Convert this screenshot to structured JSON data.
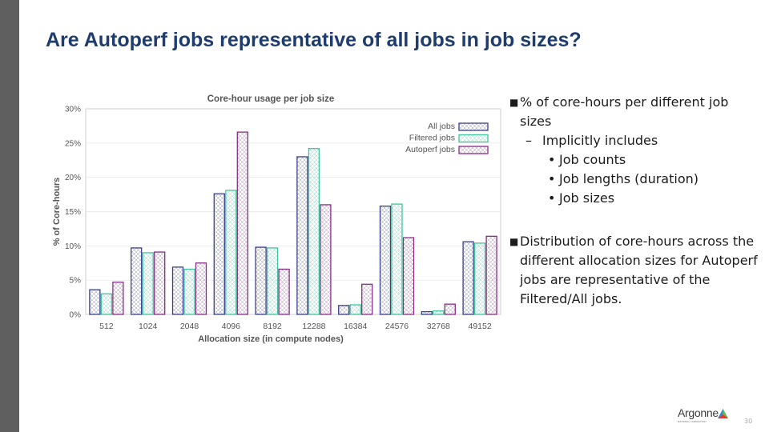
{
  "slide": {
    "title": "Are Autoperf jobs representative of all jobs in job sizes?",
    "page_number": "30",
    "logo_text": "Argonne",
    "logo_subtext": "NATIONAL LABORATORY"
  },
  "bullets": [
    {
      "level": 1,
      "text": "% of core-hours per different job sizes"
    },
    {
      "level": 2,
      "text": "Implicitly includes"
    },
    {
      "level": 3,
      "text": "Job counts"
    },
    {
      "level": 3,
      "text": "Job lengths (duration)"
    },
    {
      "level": 3,
      "text": "Job sizes"
    },
    {
      "level": 1,
      "text": "Distribution of core-hours across the different allocation sizes for Autoperf jobs are representative of the Filtered/All jobs."
    }
  ],
  "chart_data": {
    "type": "bar",
    "title": "Core-hour usage per job size",
    "xlabel": "Allocation size (in compute nodes)",
    "ylabel": "% of Core-hours",
    "categories": [
      "512",
      "1024",
      "2048",
      "4096",
      "8192",
      "12288",
      "16384",
      "24576",
      "32768",
      "49152"
    ],
    "ylim": [
      0,
      30
    ],
    "yticks": [
      "0%",
      "5%",
      "10%",
      "15%",
      "20%",
      "25%",
      "30%"
    ],
    "legend_position": "top-right",
    "series": [
      {
        "name": "All jobs",
        "color": "#3a3f8f",
        "values": [
          3.6,
          9.7,
          6.9,
          17.6,
          9.8,
          23.0,
          1.3,
          15.8,
          0.4,
          10.6
        ]
      },
      {
        "name": "Filtered jobs",
        "color": "#3fc79a",
        "values": [
          3.0,
          9.0,
          6.6,
          18.1,
          9.7,
          24.2,
          1.4,
          16.1,
          0.5,
          10.4
        ]
      },
      {
        "name": "Autoperf jobs",
        "color": "#8a2d8a",
        "values": [
          4.7,
          9.1,
          7.5,
          26.6,
          6.6,
          16.0,
          4.4,
          11.2,
          1.5,
          11.4
        ]
      }
    ]
  }
}
